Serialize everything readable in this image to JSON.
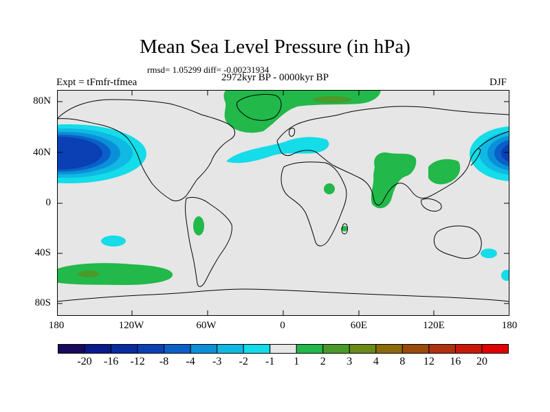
{
  "title": "Mean Sea Level Pressure (in hPa)",
  "stats": "rmsd= 1.05299 diff= -0.00231934",
  "period": "2972kyr BP - 0000kyr BP",
  "experiment": "Expt = tFmfr-tfmea",
  "season": "DJF",
  "lat_labels": [
    "80N",
    "40N",
    "0",
    "40S",
    "80S"
  ],
  "lon_labels": [
    "180",
    "120W",
    "60W",
    "0",
    "60E",
    "120E",
    "180"
  ],
  "colorbar": {
    "labels": [
      "-20",
      "-16",
      "-12",
      "-8",
      "-4",
      "-3",
      "-2",
      "-1",
      "1",
      "2",
      "3",
      "4",
      "8",
      "12",
      "16",
      "20"
    ],
    "colors": [
      "#1a0a5e",
      "#0a1a8c",
      "#0a2aa0",
      "#0a40b4",
      "#0a60c8",
      "#0a90d8",
      "#10b8e4",
      "#14dce8",
      "#e6e6e6",
      "#22b84a",
      "#4a9a2a",
      "#6a8a1a",
      "#8a6a0a",
      "#9a4a0a",
      "#b03010",
      "#c81808",
      "#e00000"
    ]
  },
  "colors": {
    "ocean": "#e6e6e6",
    "coast": "#000000"
  }
}
